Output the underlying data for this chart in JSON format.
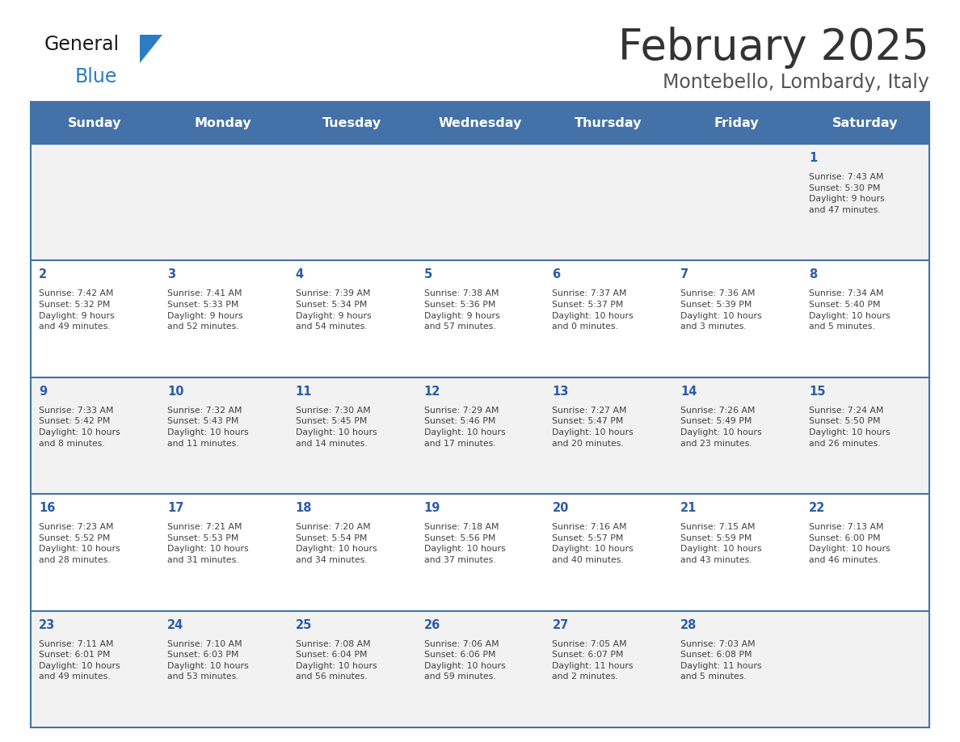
{
  "title": "February 2025",
  "subtitle": "Montebello, Lombardy, Italy",
  "header_bg_color": "#4472A8",
  "header_text_color": "#FFFFFF",
  "row_bg_even": "#F2F2F2",
  "row_bg_odd": "#FFFFFF",
  "cell_text_color": "#404040",
  "day_number_color": "#2B5BA8",
  "grid_line_color": "#4472A8",
  "days_of_week": [
    "Sunday",
    "Monday",
    "Tuesday",
    "Wednesday",
    "Thursday",
    "Friday",
    "Saturday"
  ],
  "calendar_data": [
    [
      null,
      null,
      null,
      null,
      null,
      null,
      {
        "day": "1",
        "sunrise": "7:43 AM",
        "sunset": "5:30 PM",
        "daylight": "9 hours\nand 47 minutes."
      }
    ],
    [
      {
        "day": "2",
        "sunrise": "7:42 AM",
        "sunset": "5:32 PM",
        "daylight": "9 hours\nand 49 minutes."
      },
      {
        "day": "3",
        "sunrise": "7:41 AM",
        "sunset": "5:33 PM",
        "daylight": "9 hours\nand 52 minutes."
      },
      {
        "day": "4",
        "sunrise": "7:39 AM",
        "sunset": "5:34 PM",
        "daylight": "9 hours\nand 54 minutes."
      },
      {
        "day": "5",
        "sunrise": "7:38 AM",
        "sunset": "5:36 PM",
        "daylight": "9 hours\nand 57 minutes."
      },
      {
        "day": "6",
        "sunrise": "7:37 AM",
        "sunset": "5:37 PM",
        "daylight": "10 hours\nand 0 minutes."
      },
      {
        "day": "7",
        "sunrise": "7:36 AM",
        "sunset": "5:39 PM",
        "daylight": "10 hours\nand 3 minutes."
      },
      {
        "day": "8",
        "sunrise": "7:34 AM",
        "sunset": "5:40 PM",
        "daylight": "10 hours\nand 5 minutes."
      }
    ],
    [
      {
        "day": "9",
        "sunrise": "7:33 AM",
        "sunset": "5:42 PM",
        "daylight": "10 hours\nand 8 minutes."
      },
      {
        "day": "10",
        "sunrise": "7:32 AM",
        "sunset": "5:43 PM",
        "daylight": "10 hours\nand 11 minutes."
      },
      {
        "day": "11",
        "sunrise": "7:30 AM",
        "sunset": "5:45 PM",
        "daylight": "10 hours\nand 14 minutes."
      },
      {
        "day": "12",
        "sunrise": "7:29 AM",
        "sunset": "5:46 PM",
        "daylight": "10 hours\nand 17 minutes."
      },
      {
        "day": "13",
        "sunrise": "7:27 AM",
        "sunset": "5:47 PM",
        "daylight": "10 hours\nand 20 minutes."
      },
      {
        "day": "14",
        "sunrise": "7:26 AM",
        "sunset": "5:49 PM",
        "daylight": "10 hours\nand 23 minutes."
      },
      {
        "day": "15",
        "sunrise": "7:24 AM",
        "sunset": "5:50 PM",
        "daylight": "10 hours\nand 26 minutes."
      }
    ],
    [
      {
        "day": "16",
        "sunrise": "7:23 AM",
        "sunset": "5:52 PM",
        "daylight": "10 hours\nand 28 minutes."
      },
      {
        "day": "17",
        "sunrise": "7:21 AM",
        "sunset": "5:53 PM",
        "daylight": "10 hours\nand 31 minutes."
      },
      {
        "day": "18",
        "sunrise": "7:20 AM",
        "sunset": "5:54 PM",
        "daylight": "10 hours\nand 34 minutes."
      },
      {
        "day": "19",
        "sunrise": "7:18 AM",
        "sunset": "5:56 PM",
        "daylight": "10 hours\nand 37 minutes."
      },
      {
        "day": "20",
        "sunrise": "7:16 AM",
        "sunset": "5:57 PM",
        "daylight": "10 hours\nand 40 minutes."
      },
      {
        "day": "21",
        "sunrise": "7:15 AM",
        "sunset": "5:59 PM",
        "daylight": "10 hours\nand 43 minutes."
      },
      {
        "day": "22",
        "sunrise": "7:13 AM",
        "sunset": "6:00 PM",
        "daylight": "10 hours\nand 46 minutes."
      }
    ],
    [
      {
        "day": "23",
        "sunrise": "7:11 AM",
        "sunset": "6:01 PM",
        "daylight": "10 hours\nand 49 minutes."
      },
      {
        "day": "24",
        "sunrise": "7:10 AM",
        "sunset": "6:03 PM",
        "daylight": "10 hours\nand 53 minutes."
      },
      {
        "day": "25",
        "sunrise": "7:08 AM",
        "sunset": "6:04 PM",
        "daylight": "10 hours\nand 56 minutes."
      },
      {
        "day": "26",
        "sunrise": "7:06 AM",
        "sunset": "6:06 PM",
        "daylight": "10 hours\nand 59 minutes."
      },
      {
        "day": "27",
        "sunrise": "7:05 AM",
        "sunset": "6:07 PM",
        "daylight": "11 hours\nand 2 minutes."
      },
      {
        "day": "28",
        "sunrise": "7:03 AM",
        "sunset": "6:08 PM",
        "daylight": "11 hours\nand 5 minutes."
      },
      null
    ]
  ]
}
